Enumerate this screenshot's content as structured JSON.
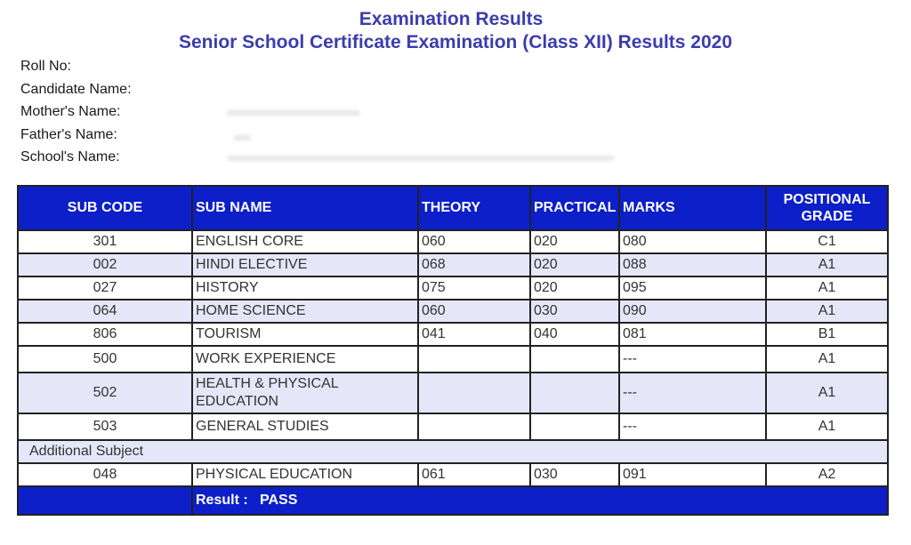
{
  "header": {
    "title": "Examination Results",
    "subtitle": "Senior School Certificate Examination (Class XII) Results 2020"
  },
  "candidate": {
    "labels": [
      "Roll No:",
      "Candidate Name:",
      "Mother's Name:",
      "Father's Name:",
      "School's Name:"
    ]
  },
  "table": {
    "columns": [
      "SUB CODE",
      "SUB NAME",
      "THEORY",
      "PRACTICAL",
      "MARKS",
      "POSITIONAL GRADE"
    ],
    "rows": [
      {
        "code": "301",
        "name": "ENGLISH CORE",
        "theory": "060",
        "practical": "020",
        "marks": "080",
        "grade": "C1"
      },
      {
        "code": "002",
        "name": "HINDI ELECTIVE",
        "theory": "068",
        "practical": "020",
        "marks": "088",
        "grade": "A1"
      },
      {
        "code": "027",
        "name": "HISTORY",
        "theory": "075",
        "practical": "020",
        "marks": "095",
        "grade": "A1"
      },
      {
        "code": "064",
        "name": "HOME SCIENCE",
        "theory": "060",
        "practical": "030",
        "marks": "090",
        "grade": "A1"
      },
      {
        "code": "806",
        "name": "TOURISM",
        "theory": "041",
        "practical": "040",
        "marks": "081",
        "grade": "B1"
      },
      {
        "code": "500",
        "name": "WORK EXPERIENCE",
        "theory": "",
        "practical": "",
        "marks": "---",
        "grade": "A1"
      },
      {
        "code": "502",
        "name": "HEALTH & PHYSICAL EDUCATION",
        "theory": "",
        "practical": "",
        "marks": "---",
        "grade": "A1"
      },
      {
        "code": "503",
        "name": "GENERAL STUDIES",
        "theory": "",
        "practical": "",
        "marks": "---",
        "grade": "A1"
      }
    ],
    "additional_label": "Additional Subject",
    "additional_rows": [
      {
        "code": "048",
        "name": "PHYSICAL EDUCATION",
        "theory": "061",
        "practical": "030",
        "marks": "091",
        "grade": "A2"
      }
    ],
    "result_label": "Result :",
    "result_value": "PASS"
  }
}
